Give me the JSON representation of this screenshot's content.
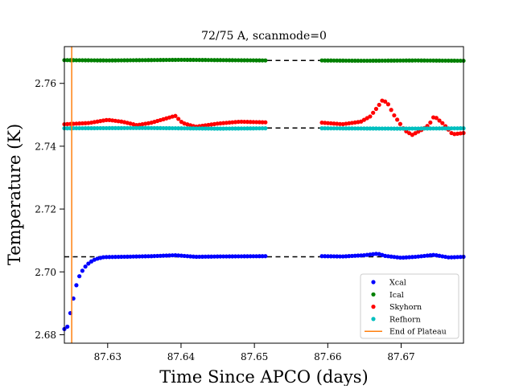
{
  "chart_data": {
    "type": "scatter",
    "title": "72/75 A, scanmode=0",
    "xlabel": "Time Since APCO (days)",
    "ylabel": "Temperature (K)",
    "xlim": [
      87.6241,
      87.6785
    ],
    "ylim": [
      2.6773,
      2.7717
    ],
    "xticks": [
      87.63,
      87.64,
      87.65,
      87.66,
      87.67
    ],
    "xtick_labels": [
      "87.63",
      "87.64",
      "87.65",
      "87.66",
      "87.67"
    ],
    "yticks": [
      2.68,
      2.7,
      2.72,
      2.74,
      2.76
    ],
    "ytick_labels": [
      "2.68",
      "2.70",
      "2.72",
      "2.74",
      "2.76"
    ],
    "grid": false,
    "legend_position": "lower-right",
    "reference_lines": [
      {
        "y": 2.7673,
        "x_range": [
          87.6241,
          87.6785
        ],
        "style": "dashed",
        "color": "#000000"
      },
      {
        "y": 2.7458,
        "x_range": [
          87.6241,
          87.6785
        ],
        "style": "dashed",
        "color": "#000000"
      },
      {
        "y": 2.7048,
        "x_range": [
          87.6241,
          87.6785
        ],
        "style": "dashed",
        "color": "#000000"
      }
    ],
    "vertical_lines": [
      {
        "name": "End of Plateau",
        "x": 87.6251,
        "color": "#ff7f0e"
      }
    ],
    "series": [
      {
        "name": "Xcal",
        "color": "#0000ff",
        "segments": [
          {
            "x_start": 87.6241,
            "x_end": 87.6515,
            "n": 68,
            "knots": [
              [
                87.6241,
                2.6818
              ],
              [
                87.6244,
                2.6814
              ],
              [
                87.6251,
                2.6888
              ],
              [
                87.6256,
                2.6948
              ],
              [
                87.6262,
                2.699
              ],
              [
                87.6268,
                2.7013
              ],
              [
                87.6274,
                2.7027
              ],
              [
                87.628,
                2.7037
              ],
              [
                87.6287,
                2.7043
              ],
              [
                87.6295,
                2.7047
              ],
              [
                87.632,
                2.7048
              ],
              [
                87.636,
                2.705
              ],
              [
                87.6392,
                2.7053
              ],
              [
                87.642,
                2.7048
              ],
              [
                87.645,
                2.7049
              ],
              [
                87.6515,
                2.705
              ]
            ]
          },
          {
            "x_start": 87.6592,
            "x_end": 87.6785,
            "n": 48,
            "knots": [
              [
                87.6592,
                2.705
              ],
              [
                87.662,
                2.7049
              ],
              [
                87.665,
                2.7053
              ],
              [
                87.6668,
                2.7058
              ],
              [
                87.6678,
                2.7051
              ],
              [
                87.67,
                2.7045
              ],
              [
                87.672,
                2.7048
              ],
              [
                87.6745,
                2.7054
              ],
              [
                87.6765,
                2.7046
              ],
              [
                87.6785,
                2.7048
              ]
            ]
          }
        ]
      },
      {
        "name": "Ical",
        "color": "#008000",
        "segments": [
          {
            "x_start": 87.6241,
            "x_end": 87.6515,
            "n": 68,
            "knots": [
              [
                87.6241,
                2.7674
              ],
              [
                87.63,
                2.7673
              ],
              [
                87.64,
                2.7675
              ],
              [
                87.6515,
                2.7673
              ]
            ]
          },
          {
            "x_start": 87.6592,
            "x_end": 87.6785,
            "n": 48,
            "knots": [
              [
                87.6592,
                2.7673
              ],
              [
                87.665,
                2.7672
              ],
              [
                87.672,
                2.7673
              ],
              [
                87.6785,
                2.7672
              ]
            ]
          }
        ]
      },
      {
        "name": "Skyhorn",
        "color": "#ff0000",
        "segments": [
          {
            "x_start": 87.6241,
            "x_end": 87.6515,
            "n": 68,
            "knots": [
              [
                87.6241,
                2.747
              ],
              [
                87.6275,
                2.7474
              ],
              [
                87.63,
                2.7484
              ],
              [
                87.632,
                2.7478
              ],
              [
                87.634,
                2.7467
              ],
              [
                87.636,
                2.7475
              ],
              [
                87.6385,
                2.7492
              ],
              [
                87.6392,
                2.7497
              ],
              [
                87.6402,
                2.7474
              ],
              [
                87.642,
                2.7462
              ],
              [
                87.645,
                2.7472
              ],
              [
                87.648,
                2.7478
              ],
              [
                87.6515,
                2.7476
              ]
            ]
          },
          {
            "x_start": 87.6592,
            "x_end": 87.6785,
            "n": 48,
            "knots": [
              [
                87.6592,
                2.7475
              ],
              [
                87.662,
                2.747
              ],
              [
                87.6645,
                2.7478
              ],
              [
                87.6658,
                2.7495
              ],
              [
                87.6668,
                2.7525
              ],
              [
                87.6675,
                2.7548
              ],
              [
                87.6682,
                2.7535
              ],
              [
                87.669,
                2.75
              ],
              [
                87.6705,
                2.745
              ],
              [
                87.6715,
                2.7436
              ],
              [
                87.6728,
                2.7452
              ],
              [
                87.6738,
                2.7468
              ],
              [
                87.6745,
                2.7496
              ],
              [
                87.6758,
                2.747
              ],
              [
                87.677,
                2.7438
              ],
              [
                87.6785,
                2.7442
              ]
            ]
          }
        ]
      },
      {
        "name": "Refhorn",
        "color": "#00bfbf",
        "segments": [
          {
            "x_start": 87.6241,
            "x_end": 87.6515,
            "n": 68,
            "knots": [
              [
                87.6241,
                2.7457
              ],
              [
                87.635,
                2.7458
              ],
              [
                87.645,
                2.7456
              ],
              [
                87.6515,
                2.7457
              ]
            ]
          },
          {
            "x_start": 87.6592,
            "x_end": 87.6785,
            "n": 48,
            "knots": [
              [
                87.6592,
                2.7457
              ],
              [
                87.67,
                2.7456
              ],
              [
                87.6785,
                2.7457
              ]
            ]
          }
        ]
      }
    ]
  }
}
